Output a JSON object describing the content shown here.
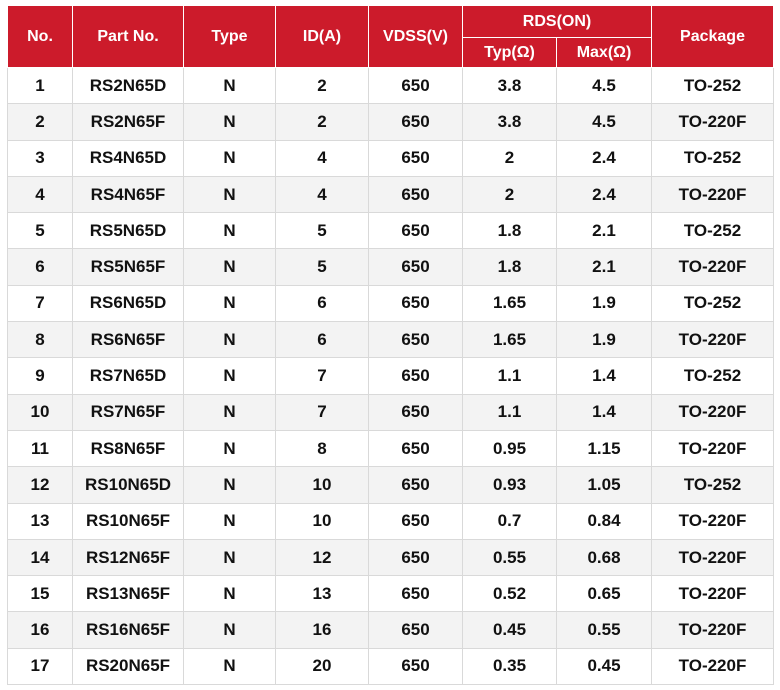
{
  "table": {
    "header": {
      "columns": [
        "No.",
        "Part No.",
        "Type",
        "ID(A)",
        "VDSS(V)",
        "RDS(ON)",
        "Package"
      ],
      "sub": [
        "Typ(Ω)",
        "Max(Ω)"
      ]
    },
    "rows": [
      [
        "1",
        "RS2N65D",
        "N",
        "2",
        "650",
        "3.8",
        "4.5",
        "TO-252"
      ],
      [
        "2",
        "RS2N65F",
        "N",
        "2",
        "650",
        "3.8",
        "4.5",
        "TO-220F"
      ],
      [
        "3",
        "RS4N65D",
        "N",
        "4",
        "650",
        "2",
        "2.4",
        "TO-252"
      ],
      [
        "4",
        "RS4N65F",
        "N",
        "4",
        "650",
        "2",
        "2.4",
        "TO-220F"
      ],
      [
        "5",
        "RS5N65D",
        "N",
        "5",
        "650",
        "1.8",
        "2.1",
        "TO-252"
      ],
      [
        "6",
        "RS5N65F",
        "N",
        "5",
        "650",
        "1.8",
        "2.1",
        "TO-220F"
      ],
      [
        "7",
        "RS6N65D",
        "N",
        "6",
        "650",
        "1.65",
        "1.9",
        "TO-252"
      ],
      [
        "8",
        "RS6N65F",
        "N",
        "6",
        "650",
        "1.65",
        "1.9",
        "TO-220F"
      ],
      [
        "9",
        "RS7N65D",
        "N",
        "7",
        "650",
        "1.1",
        "1.4",
        "TO-252"
      ],
      [
        "10",
        "RS7N65F",
        "N",
        "7",
        "650",
        "1.1",
        "1.4",
        "TO-220F"
      ],
      [
        "11",
        "RS8N65F",
        "N",
        "8",
        "650",
        "0.95",
        "1.15",
        "TO-220F"
      ],
      [
        "12",
        "RS10N65D",
        "N",
        "10",
        "650",
        "0.93",
        "1.05",
        "TO-252"
      ],
      [
        "13",
        "RS10N65F",
        "N",
        "10",
        "650",
        "0.7",
        "0.84",
        "TO-220F"
      ],
      [
        "14",
        "RS12N65F",
        "N",
        "12",
        "650",
        "0.55",
        "0.68",
        "TO-220F"
      ],
      [
        "15",
        "RS13N65F",
        "N",
        "13",
        "650",
        "0.52",
        "0.65",
        "TO-220F"
      ],
      [
        "16",
        "RS16N65F",
        "N",
        "16",
        "650",
        "0.45",
        "0.55",
        "TO-220F"
      ],
      [
        "17",
        "RS20N65F",
        "N",
        "20",
        "650",
        "0.35",
        "0.45",
        "TO-220F"
      ]
    ]
  }
}
